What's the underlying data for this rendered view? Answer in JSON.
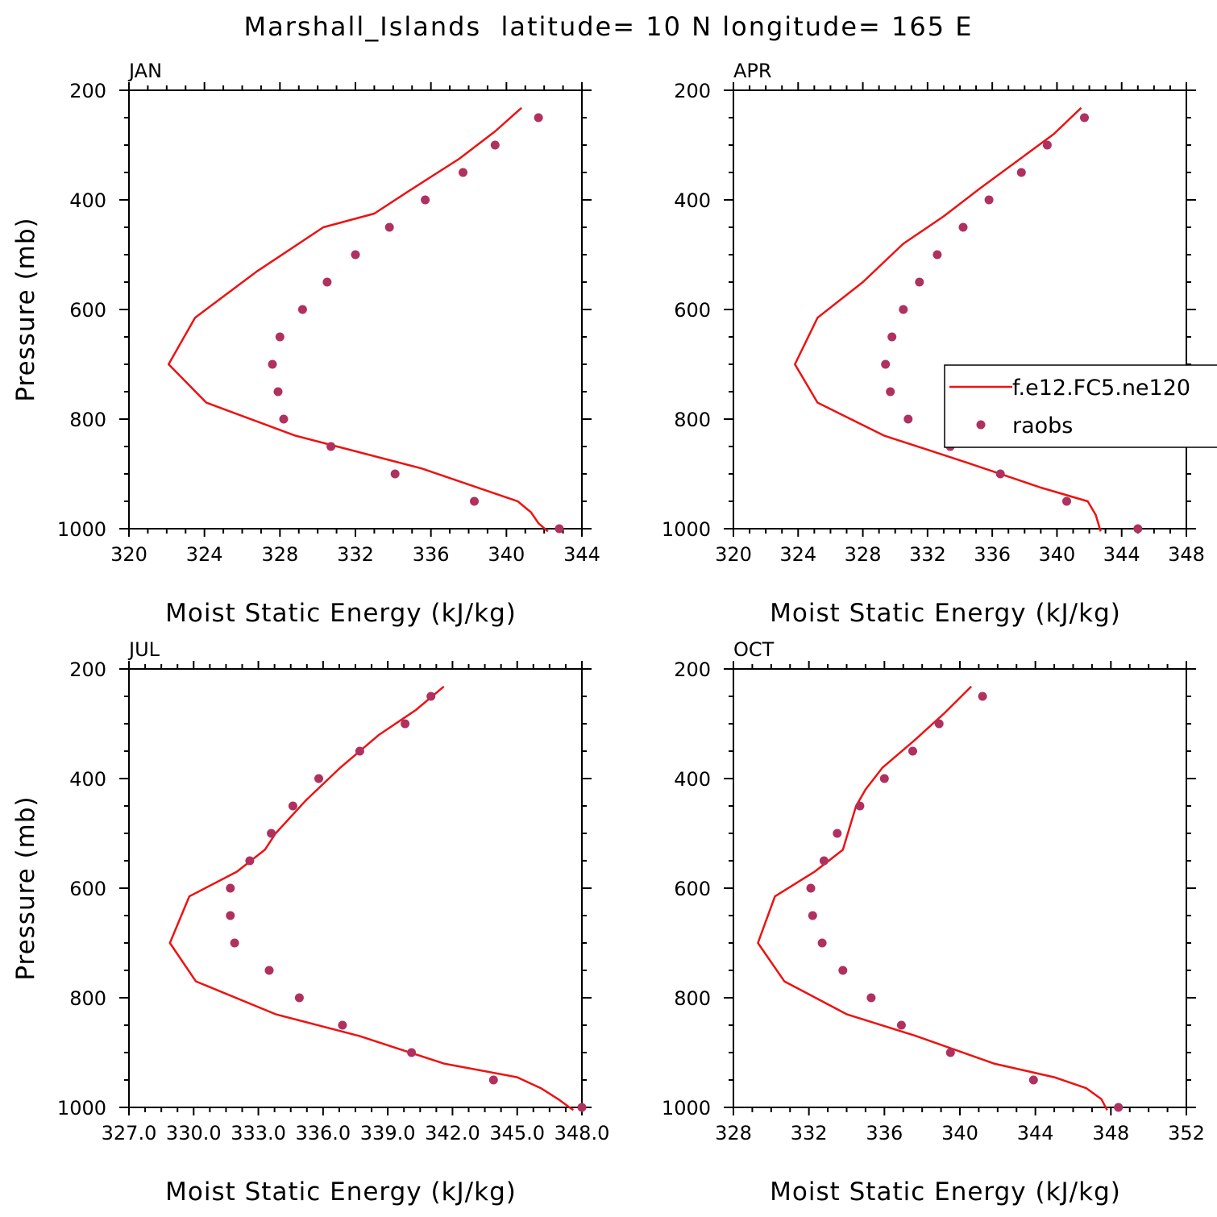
{
  "title": "Marshall_Islands  latitude= 10 N longitude= 165 E",
  "colors": {
    "model": "#ee1111",
    "obs": "#b03060",
    "axis": "#000000"
  },
  "legend": {
    "placement": "right-middle of APR panel",
    "model_label": "f.e12.FC5.ne120",
    "obs_label": "raobs"
  },
  "chart_data": [
    {
      "type": "line",
      "panel": "JAN",
      "xlabel": "Moist Static Energy (kJ/kg)",
      "ylabel": "Pressure (mb)",
      "xlim": [
        320,
        344
      ],
      "ylim": [
        1000,
        200
      ],
      "xticks": [
        320,
        324,
        328,
        332,
        336,
        340,
        344
      ],
      "xtick_labels": [
        "320",
        "324",
        "328",
        "332",
        "336",
        "340",
        "344"
      ],
      "yticks": [
        200,
        400,
        600,
        800,
        1000
      ],
      "yticklabels": [
        "200",
        "400",
        "600",
        "800",
        "1000"
      ],
      "series": [
        {
          "name": "f.e12.FC5.ne120",
          "kind": "line",
          "x": [
            340.8,
            339.4,
            337.5,
            335.0,
            333.0,
            330.3,
            326.8,
            323.5,
            322.1,
            324.1,
            328.8,
            335.5,
            340.6,
            341.3,
            341.7,
            342.2
          ],
          "y": [
            232,
            275,
            325,
            380,
            425,
            450,
            530,
            615,
            700,
            770,
            830,
            890,
            950,
            970,
            990,
            1005
          ]
        },
        {
          "name": "raobs",
          "kind": "scatter",
          "x": [
            341.7,
            339.4,
            337.7,
            335.7,
            333.8,
            332.0,
            330.5,
            329.2,
            328.0,
            327.6,
            327.9,
            328.2,
            330.7,
            334.1,
            338.3,
            342.8
          ],
          "y": [
            250,
            300,
            350,
            400,
            450,
            500,
            550,
            600,
            650,
            700,
            750,
            800,
            850,
            900,
            950,
            1000
          ]
        }
      ]
    },
    {
      "type": "line",
      "panel": "APR",
      "xlabel": "Moist Static Energy (kJ/kg)",
      "ylabel": "",
      "xlim": [
        320,
        348
      ],
      "ylim": [
        1000,
        200
      ],
      "xticks": [
        320,
        324,
        328,
        332,
        336,
        340,
        344,
        348
      ],
      "xtick_labels": [
        "320",
        "324",
        "328",
        "332",
        "336",
        "340",
        "344",
        "348"
      ],
      "yticks": [
        200,
        400,
        600,
        800,
        1000
      ],
      "yticklabels": [
        "200",
        "400",
        "600",
        "800",
        "1000"
      ],
      "series": [
        {
          "name": "f.e12.FC5.ne120",
          "kind": "line",
          "x": [
            341.5,
            339.8,
            337.5,
            335.2,
            333.0,
            330.5,
            328.0,
            325.2,
            323.8,
            325.2,
            329.3,
            334.5,
            339.0,
            341.9,
            342.4,
            342.7
          ],
          "y": [
            232,
            280,
            330,
            380,
            430,
            480,
            550,
            615,
            700,
            770,
            830,
            880,
            925,
            950,
            975,
            1005
          ]
        },
        {
          "name": "raobs",
          "kind": "scatter",
          "x": [
            341.7,
            339.4,
            337.8,
            335.8,
            334.2,
            332.6,
            331.5,
            330.5,
            329.8,
            329.4,
            329.7,
            330.8,
            333.4,
            336.5,
            340.6,
            345.0
          ],
          "y": [
            250,
            300,
            350,
            400,
            450,
            500,
            550,
            600,
            650,
            700,
            750,
            800,
            850,
            900,
            950,
            1000
          ]
        }
      ]
    },
    {
      "type": "line",
      "panel": "JUL",
      "xlabel": "Moist Static Energy (kJ/kg)",
      "ylabel": "Pressure (mb)",
      "xlim": [
        327.0,
        348.0
      ],
      "ylim": [
        1000,
        200
      ],
      "xticks": [
        327.0,
        330.0,
        333.0,
        336.0,
        339.0,
        342.0,
        345.0,
        348.0
      ],
      "xtick_labels": [
        "327.0",
        "330.0",
        "333.0",
        "336.0",
        "339.0",
        "342.0",
        "345.0",
        "348.0"
      ],
      "yticks": [
        200,
        400,
        600,
        800,
        1000
      ],
      "yticklabels": [
        "200",
        "400",
        "600",
        "800",
        "1000"
      ],
      "series": [
        {
          "name": "f.e12.FC5.ne120",
          "kind": "line",
          "x": [
            341.6,
            340.3,
            338.6,
            336.8,
            335.2,
            333.8,
            333.3,
            332.0,
            329.8,
            328.9,
            330.1,
            333.8,
            337.7,
            341.6,
            345.0,
            346.1,
            346.9,
            347.6
          ],
          "y": [
            232,
            275,
            320,
            380,
            440,
            500,
            530,
            570,
            615,
            700,
            770,
            830,
            870,
            920,
            945,
            965,
            985,
            1005
          ]
        },
        {
          "name": "raobs",
          "kind": "scatter",
          "x": [
            341.0,
            339.8,
            337.7,
            335.8,
            334.6,
            333.6,
            332.6,
            331.7,
            331.7,
            331.9,
            333.5,
            334.9,
            336.9,
            340.1,
            343.9,
            348.0
          ],
          "y": [
            250,
            300,
            350,
            400,
            450,
            500,
            550,
            600,
            650,
            700,
            750,
            800,
            850,
            900,
            950,
            1000
          ]
        }
      ]
    },
    {
      "type": "line",
      "panel": "OCT",
      "xlabel": "Moist Static Energy (kJ/kg)",
      "ylabel": "",
      "xlim": [
        328,
        352
      ],
      "ylim": [
        1000,
        200
      ],
      "xticks": [
        328,
        332,
        336,
        340,
        344,
        348,
        352
      ],
      "xtick_labels": [
        "328",
        "332",
        "336",
        "340",
        "344",
        "348",
        "352"
      ],
      "yticks": [
        200,
        400,
        600,
        800,
        1000
      ],
      "yticklabels": [
        "200",
        "400",
        "600",
        "800",
        "1000"
      ],
      "series": [
        {
          "name": "f.e12.FC5.ne120",
          "kind": "line",
          "x": [
            340.6,
            339.2,
            337.6,
            335.9,
            335.0,
            334.5,
            333.8,
            332.3,
            330.2,
            329.3,
            330.7,
            334.0,
            337.7,
            341.8,
            345.0,
            346.7,
            347.5,
            347.8
          ],
          "y": [
            232,
            280,
            330,
            380,
            420,
            450,
            530,
            570,
            615,
            700,
            770,
            830,
            870,
            920,
            945,
            965,
            985,
            1005
          ]
        },
        {
          "name": "raobs",
          "kind": "scatter",
          "x": [
            341.2,
            338.9,
            337.5,
            336.0,
            334.7,
            333.5,
            332.8,
            332.1,
            332.2,
            332.7,
            333.8,
            335.3,
            336.9,
            339.5,
            343.9,
            348.4
          ],
          "y": [
            250,
            300,
            350,
            400,
            450,
            500,
            550,
            600,
            650,
            700,
            750,
            800,
            850,
            900,
            950,
            1000
          ]
        }
      ]
    }
  ]
}
